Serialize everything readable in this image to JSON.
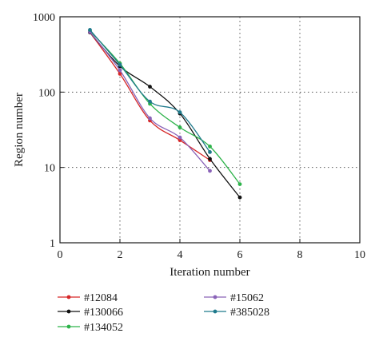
{
  "chart_data": {
    "type": "line",
    "title": "",
    "xlabel": "Iteration number",
    "ylabel": "Region number",
    "xlim": [
      0,
      10
    ],
    "ylim": [
      1,
      1000
    ],
    "yscale": "log",
    "x_ticks": [
      0,
      2,
      4,
      6,
      8,
      10
    ],
    "y_ticks": [
      1,
      10,
      100,
      1000
    ],
    "x_tick_labels": [
      "0",
      "2",
      "4",
      "6",
      "8",
      "10"
    ],
    "y_tick_labels": [
      "1",
      "10",
      "100",
      "1000"
    ],
    "grid": "dotted",
    "legend_position": "bottom",
    "series": [
      {
        "name": "#12084",
        "color": "#d62728",
        "x": [
          1,
          2,
          3,
          4,
          5
        ],
        "y": [
          620,
          175,
          42,
          23,
          12.5
        ]
      },
      {
        "name": "#130066",
        "color": "#111111",
        "x": [
          1,
          2,
          3,
          4,
          5,
          6
        ],
        "y": [
          620,
          220,
          118,
          52,
          13,
          4
        ]
      },
      {
        "name": "#134052",
        "color": "#2db34a",
        "x": [
          1,
          2,
          3,
          4,
          5,
          6
        ],
        "y": [
          650,
          240,
          70,
          34,
          19,
          6
        ]
      },
      {
        "name": "#15062",
        "color": "#8a63b8",
        "x": [
          1,
          2,
          3,
          4,
          5
        ],
        "y": [
          630,
          195,
          45,
          25,
          9
        ]
      },
      {
        "name": "#385028",
        "color": "#1f7a8c",
        "x": [
          1,
          2,
          3,
          4,
          5
        ],
        "y": [
          670,
          230,
          75,
          54,
          16
        ]
      }
    ]
  }
}
